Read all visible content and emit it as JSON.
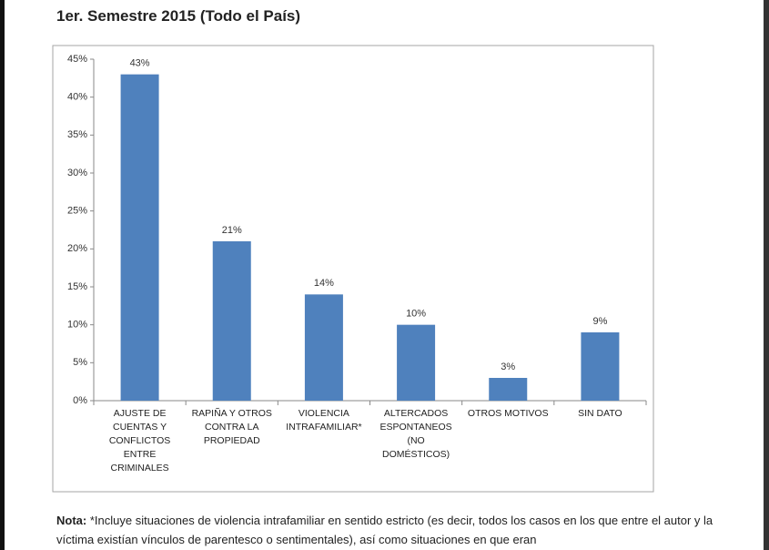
{
  "title": "1er. Semestre 2015 (Todo el País)",
  "chart_data": {
    "type": "bar",
    "categories": [
      "AJUSTE DE CUENTAS Y CONFLICTOS ENTRE CRIMINALES",
      "RAPIÑA Y OTROS CONTRA LA PROPIEDAD",
      "VIOLENCIA INTRAFAMILIAR*",
      "ALTERCADOS ESPONTANEOS (NO DOMÉSTICOS)",
      "OTROS MOTIVOS",
      "SIN DATO"
    ],
    "values": [
      43,
      21,
      14,
      10,
      3,
      9
    ],
    "value_labels": [
      "43%",
      "21%",
      "14%",
      "10%",
      "3%",
      "9%"
    ],
    "color": "#4f81bd",
    "ylim": [
      0,
      45
    ],
    "yticks": [
      {
        "value": 0,
        "label": "0%"
      },
      {
        "value": 5,
        "label": "5%"
      },
      {
        "value": 10,
        "label": "10%"
      },
      {
        "value": 15,
        "label": "15%"
      },
      {
        "value": 20,
        "label": "20%"
      },
      {
        "value": 25,
        "label": "25%"
      },
      {
        "value": 30,
        "label": "30%"
      },
      {
        "value": 35,
        "label": "35%"
      },
      {
        "value": 40,
        "label": "40%"
      },
      {
        "value": 45,
        "label": "45%"
      }
    ],
    "grid": false
  },
  "note": {
    "label": "Nota:",
    "text": "*Incluye situaciones de violencia intrafamiliar en sentido estricto (es decir, todos los casos en los que entre el autor y la víctima existían vínculos de parentesco o sentimentales), así como situaciones en que eran"
  }
}
